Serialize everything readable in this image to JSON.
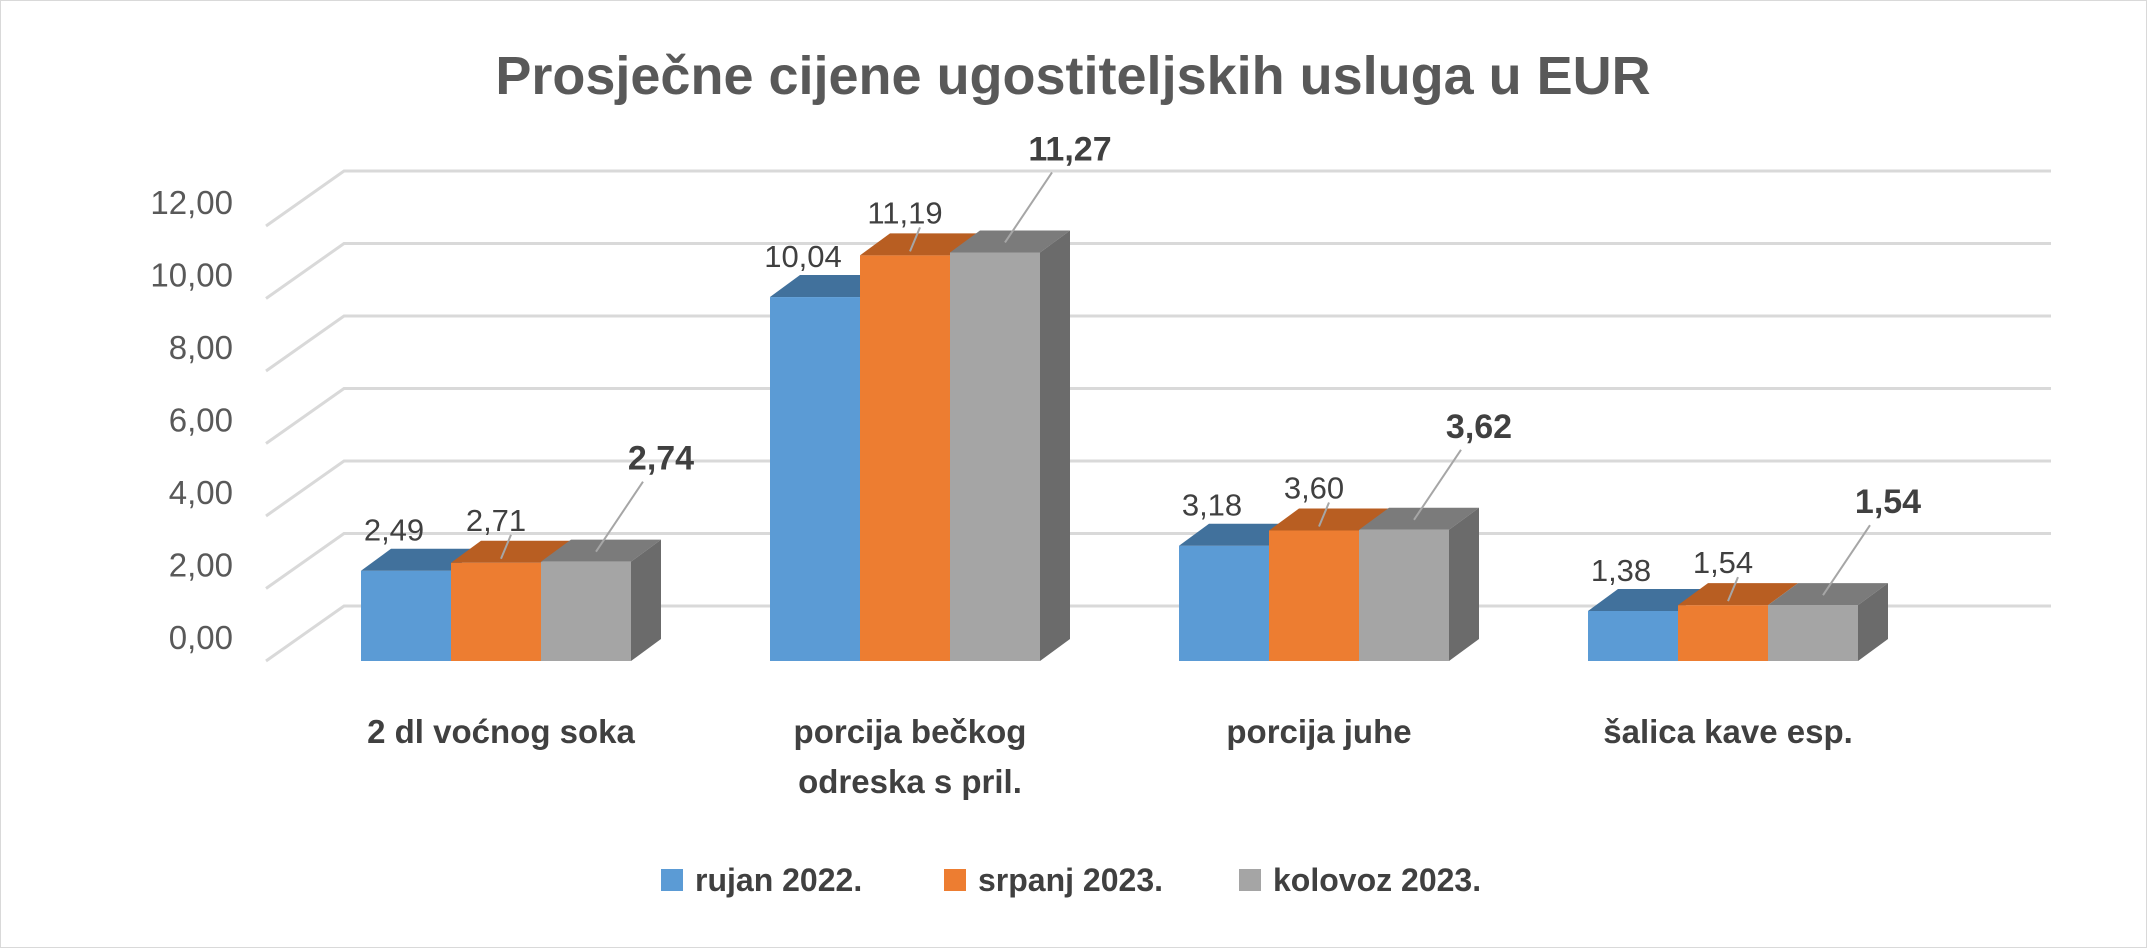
{
  "chart_data": {
    "type": "bar",
    "title": "Prosječne cijene ugostiteljskih usluga u EUR",
    "categories": [
      [
        "2 dl voćnog soka"
      ],
      [
        "porcija bečkog",
        "odreska s pril."
      ],
      [
        "porcija juhe"
      ],
      [
        "šalica kave esp."
      ]
    ],
    "series": [
      {
        "name": "rujan 2022.",
        "values": [
          2.49,
          10.04,
          3.18,
          1.38
        ],
        "labels": [
          "2,49",
          "10,04",
          "3,18",
          "1,38"
        ],
        "color": "#5B9BD5",
        "color_top": "#41719C",
        "color_side": "#3E6C96",
        "bold_labels": false
      },
      {
        "name": "srpanj 2023.",
        "values": [
          2.71,
          11.19,
          3.6,
          1.54
        ],
        "labels": [
          "2,71",
          "11,19",
          "3,60",
          "1,54"
        ],
        "color": "#ED7D31",
        "color_top": "#B85E22",
        "color_side": "#AE5A1F",
        "bold_labels": false
      },
      {
        "name": "kolovoz 2023.",
        "values": [
          2.74,
          11.27,
          3.62,
          1.54
        ],
        "labels": [
          "2,74",
          "11,27",
          "3,62",
          "1,54"
        ],
        "color": "#A5A5A5",
        "color_top": "#7B7B7B",
        "color_side": "#6B6B6B",
        "bold_labels": true
      }
    ],
    "y_ticks": [
      "0,00",
      "2,00",
      "4,00",
      "6,00",
      "8,00",
      "10,00",
      "12,00"
    ],
    "ylim": [
      0,
      12
    ],
    "grid": true,
    "legend_position": "bottom",
    "style": "3d-clustered-column"
  }
}
